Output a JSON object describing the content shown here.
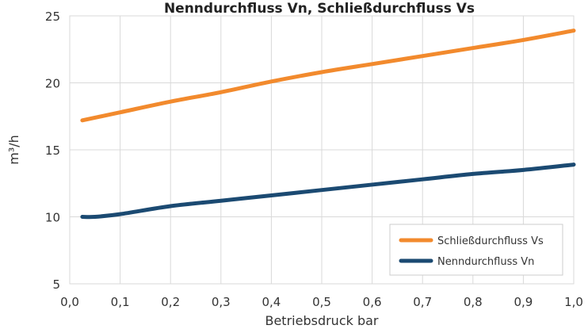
{
  "chart_data": {
    "type": "line",
    "title": "Nenndurchfluss Vn, Schließdurchfluss Vs",
    "xlabel": "Betriebsdruck bar",
    "ylabel": "m³/h",
    "xlim": [
      0.0,
      1.0
    ],
    "ylim": [
      5,
      25
    ],
    "x_ticks": [
      "0,0",
      "0,1",
      "0,2",
      "0,3",
      "0,4",
      "0,5",
      "0,6",
      "0,7",
      "0,8",
      "0,9",
      "1,0"
    ],
    "y_ticks": [
      "5",
      "10",
      "15",
      "20",
      "25"
    ],
    "grid": true,
    "legend_position": "bottom-right",
    "series": [
      {
        "name": "Schließdurchfluss Vs",
        "color": "#f28a2d",
        "x": [
          0.025,
          0.1,
          0.2,
          0.3,
          0.4,
          0.5,
          0.6,
          0.7,
          0.8,
          0.9,
          1.0
        ],
        "y": [
          17.2,
          17.8,
          18.6,
          19.3,
          20.1,
          20.8,
          21.4,
          22.0,
          22.6,
          23.2,
          23.9
        ]
      },
      {
        "name": "Nenndurchfluss Vn",
        "color": "#1b4a72",
        "x": [
          0.025,
          0.05,
          0.1,
          0.2,
          0.3,
          0.4,
          0.5,
          0.6,
          0.7,
          0.8,
          0.9,
          1.0
        ],
        "y": [
          10.0,
          10.0,
          10.2,
          10.8,
          11.2,
          11.6,
          12.0,
          12.4,
          12.8,
          13.2,
          13.5,
          13.9
        ]
      }
    ]
  }
}
